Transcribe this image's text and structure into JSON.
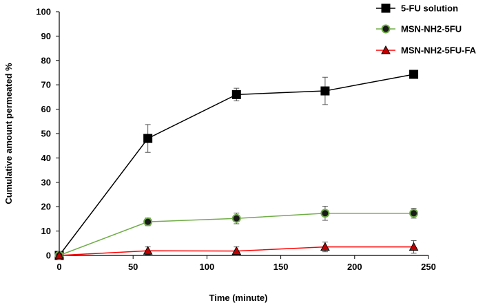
{
  "chart_data": {
    "type": "line",
    "title": "",
    "xlabel": "Time (minute)",
    "ylabel": "Cumulative amount permeated %",
    "xlim": [
      0,
      250
    ],
    "ylim": [
      0,
      100
    ],
    "xticks": [
      0,
      50,
      100,
      150,
      200,
      250
    ],
    "yticks": [
      0,
      10,
      20,
      30,
      40,
      50,
      60,
      70,
      80,
      90,
      100
    ],
    "grid": false,
    "legend_position": "top-right",
    "x": [
      0,
      60,
      120,
      180,
      240
    ],
    "series": [
      {
        "name": "5-FU solution",
        "color": "#000000",
        "marker": "square",
        "values": [
          0,
          48,
          66,
          67.5,
          74.3
        ],
        "errors": [
          0,
          5.7,
          2.6,
          5.6,
          0
        ]
      },
      {
        "name": "MSN-NH2-5FU",
        "color": "#70ad47",
        "marker": "circle",
        "values": [
          0,
          13.8,
          15.2,
          17.3,
          17.3
        ],
        "errors": [
          0,
          1.6,
          2.2,
          2.9,
          2.0
        ]
      },
      {
        "name": "MSN-NH2-5FU-FA",
        "color": "#ff0000",
        "marker": "triangle",
        "values": [
          0,
          1.9,
          1.8,
          3.5,
          3.5
        ],
        "errors": [
          0,
          1.6,
          1.7,
          2.0,
          2.6
        ]
      }
    ]
  }
}
